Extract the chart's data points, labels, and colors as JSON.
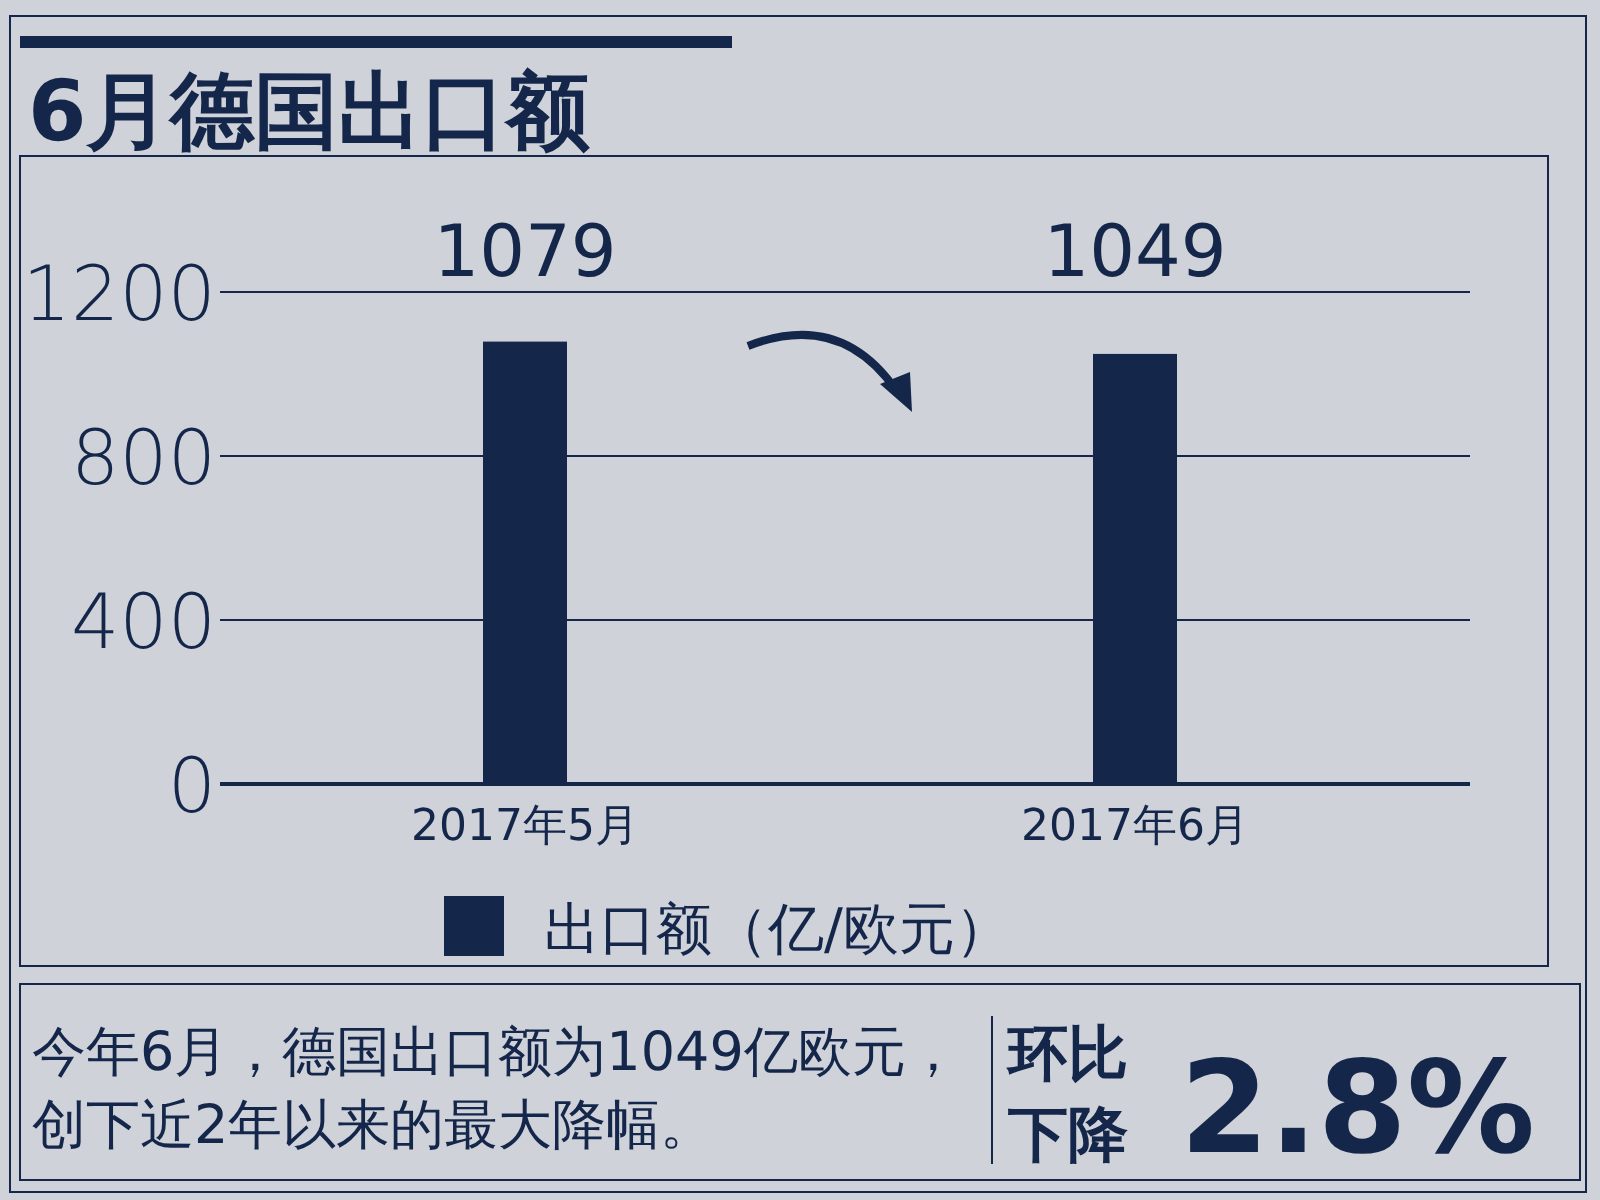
{
  "chart_data": {
    "type": "bar",
    "title": "6月德国出口额",
    "categories": [
      "2017年5月",
      "2017年6月"
    ],
    "series": [
      {
        "name": "出口额（亿/欧元）",
        "color": "#14264a",
        "values": [
          1079,
          1049
        ]
      }
    ],
    "ylim": [
      0,
      1200
    ],
    "yticks": [
      0,
      400,
      800,
      1200
    ],
    "grid": "y",
    "legend": "bottom",
    "data_labels": true,
    "annotations": [
      "今年6月，德国出口额为1049亿欧元，创下近2年以来的最大降幅。",
      "环比下降",
      "2.8%"
    ]
  }
}
